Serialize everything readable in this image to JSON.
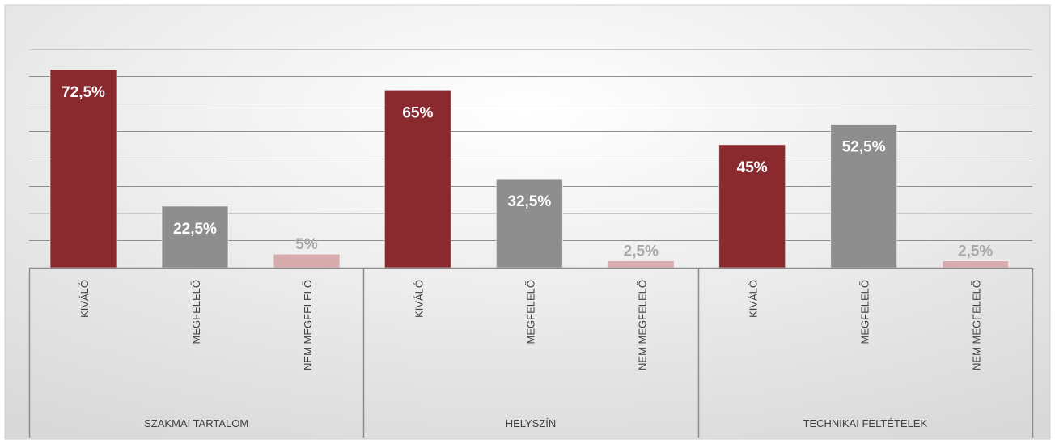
{
  "chart_data": {
    "type": "bar",
    "title": "",
    "xlabel": "",
    "ylabel": "",
    "ylim": [
      0,
      80
    ],
    "grid": true,
    "legend": "none",
    "y_axis_labels_visible": false,
    "groups": [
      {
        "name": "SZAKMAI TARTALOM",
        "bars": [
          {
            "category": "KIVÁLÓ",
            "value": 72.5,
            "label": "72,5%",
            "color": "#8b2a2e"
          },
          {
            "category": "MEGFELELŐ",
            "value": 22.5,
            "label": "22,5%",
            "color": "#8e8e8e"
          },
          {
            "category": "NEM MEGFELELŐ",
            "value": 5,
            "label": "5%",
            "color": "#d8acac"
          }
        ]
      },
      {
        "name": "HELYSZÍN",
        "bars": [
          {
            "category": "KIVÁLÓ",
            "value": 65,
            "label": "65%",
            "color": "#8b2a2e"
          },
          {
            "category": "MEGFELELŐ",
            "value": 32.5,
            "label": "32,5%",
            "color": "#8e8e8e"
          },
          {
            "category": "NEM MEGFELELŐ",
            "value": 2.5,
            "label": "2,5%",
            "color": "#d8acac"
          }
        ]
      },
      {
        "name": "TECHNIKAI FELTÉTELEK",
        "bars": [
          {
            "category": "KIVÁLÓ",
            "value": 45,
            "label": "45%",
            "color": "#8b2a2e"
          },
          {
            "category": "MEGFELELŐ",
            "value": 52.5,
            "label": "52,5%",
            "color": "#8e8e8e"
          },
          {
            "category": "NEM MEGFELELŐ",
            "value": 2.5,
            "label": "2,5%",
            "color": "#d8acac"
          }
        ]
      }
    ]
  }
}
